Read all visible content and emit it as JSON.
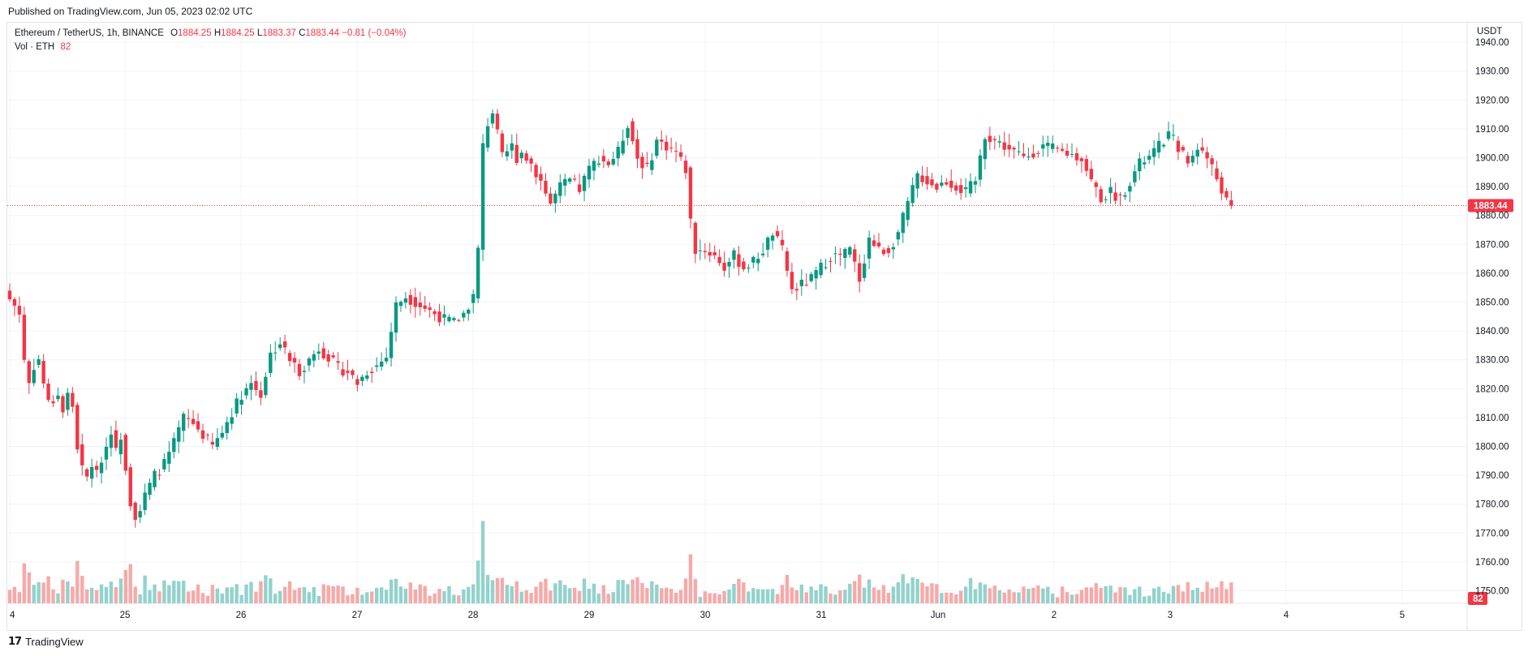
{
  "header": {
    "published": "Published on TradingView.com, Jun 05, 2023 02:02 UTC"
  },
  "legend": {
    "symbol": "Ethereum / TetherUS, 1h, BINANCE",
    "o_label": "O",
    "o_value": "1884.25",
    "h_label": "H",
    "h_value": "1884.25",
    "l_label": "L",
    "l_value": "1883.37",
    "c_label": "C",
    "c_value": "1883.44",
    "change": "−0.81 (−0.04%)",
    "vol_label": "Vol · ETH",
    "vol_value": "82"
  },
  "price_axis": {
    "quote": "USDT",
    "last_price_label": "1883.44",
    "last_volume_label": "82"
  },
  "footer": {
    "brand": "TradingView"
  },
  "colors": {
    "up": "#089981",
    "down": "#f23645",
    "up_vol": "#92d2cc",
    "down_vol": "#f7a9a7",
    "grid": "#f0f3fa"
  },
  "chart_data": {
    "type": "candlestick",
    "interval": "1h",
    "y_ticks": [
      1750,
      1760,
      1770,
      1780,
      1790,
      1800,
      1810,
      1820,
      1830,
      1840,
      1850,
      1860,
      1870,
      1880,
      1890,
      1900,
      1910,
      1920,
      1930,
      1940
    ],
    "ylim": [
      1742,
      1942
    ],
    "x_tick_labels": [
      "4",
      "25",
      "26",
      "27",
      "28",
      "29",
      "30",
      "31",
      "Jun",
      "2",
      "3",
      "4",
      "5"
    ],
    "last_price": 1883.44,
    "anchors": [
      [
        0,
        1851
      ],
      [
        1,
        1849
      ],
      [
        2,
        1846
      ],
      [
        3,
        1830
      ],
      [
        4,
        1822
      ],
      [
        5,
        1828
      ],
      [
        6,
        1830
      ],
      [
        7,
        1822
      ],
      [
        8,
        1815
      ],
      [
        9,
        1816
      ],
      [
        10,
        1818
      ],
      [
        11,
        1812
      ],
      [
        12,
        1818
      ],
      [
        13,
        1814
      ],
      [
        14,
        1800
      ],
      [
        15,
        1792
      ],
      [
        16,
        1789
      ],
      [
        17,
        1794
      ],
      [
        18,
        1790
      ],
      [
        19,
        1796
      ],
      [
        20,
        1800
      ],
      [
        21,
        1806
      ],
      [
        22,
        1798
      ],
      [
        23,
        1804
      ],
      [
        24,
        1793
      ],
      [
        25,
        1781
      ],
      [
        26,
        1776
      ],
      [
        27,
        1778
      ],
      [
        28,
        1783
      ],
      [
        30,
        1790
      ],
      [
        32,
        1794
      ],
      [
        34,
        1801
      ],
      [
        36,
        1810
      ],
      [
        38,
        1808
      ],
      [
        40,
        1804
      ],
      [
        42,
        1800
      ],
      [
        44,
        1805
      ],
      [
        46,
        1812
      ],
      [
        48,
        1818
      ],
      [
        50,
        1822
      ],
      [
        52,
        1818
      ],
      [
        54,
        1832
      ],
      [
        56,
        1836
      ],
      [
        58,
        1830
      ],
      [
        60,
        1826
      ],
      [
        62,
        1830
      ],
      [
        64,
        1834
      ],
      [
        66,
        1831
      ],
      [
        68,
        1827
      ],
      [
        70,
        1826
      ],
      [
        72,
        1822
      ],
      [
        74,
        1826
      ],
      [
        76,
        1828
      ],
      [
        78,
        1831
      ],
      [
        80,
        1849
      ],
      [
        82,
        1852
      ],
      [
        84,
        1850
      ],
      [
        86,
        1848
      ],
      [
        88,
        1846
      ],
      [
        90,
        1844
      ],
      [
        92,
        1843
      ],
      [
        94,
        1846
      ],
      [
        96,
        1852
      ],
      [
        97,
        1868
      ],
      [
        98,
        1904
      ],
      [
        99,
        1912
      ],
      [
        100,
        1916
      ],
      [
        101,
        1908
      ],
      [
        102,
        1900
      ],
      [
        103,
        1902
      ],
      [
        104,
        1904
      ],
      [
        105,
        1900
      ],
      [
        106,
        1902
      ],
      [
        108,
        1898
      ],
      [
        110,
        1892
      ],
      [
        112,
        1884
      ],
      [
        114,
        1890
      ],
      [
        116,
        1892
      ],
      [
        118,
        1889
      ],
      [
        120,
        1896
      ],
      [
        122,
        1900
      ],
      [
        124,
        1898
      ],
      [
        126,
        1902
      ],
      [
        128,
        1912
      ],
      [
        130,
        1900
      ],
      [
        132,
        1896
      ],
      [
        134,
        1906
      ],
      [
        136,
        1904
      ],
      [
        138,
        1902
      ],
      [
        140,
        1896
      ],
      [
        141,
        1878
      ],
      [
        142,
        1868
      ],
      [
        144,
        1868
      ],
      [
        146,
        1866
      ],
      [
        148,
        1862
      ],
      [
        150,
        1866
      ],
      [
        152,
        1862
      ],
      [
        154,
        1864
      ],
      [
        156,
        1868
      ],
      [
        158,
        1874
      ],
      [
        160,
        1868
      ],
      [
        162,
        1854
      ],
      [
        164,
        1856
      ],
      [
        166,
        1858
      ],
      [
        168,
        1862
      ],
      [
        170,
        1866
      ],
      [
        172,
        1866
      ],
      [
        174,
        1868
      ],
      [
        176,
        1858
      ],
      [
        178,
        1872
      ],
      [
        180,
        1868
      ],
      [
        182,
        1868
      ],
      [
        184,
        1874
      ],
      [
        186,
        1884
      ],
      [
        188,
        1894
      ],
      [
        190,
        1892
      ],
      [
        192,
        1890
      ],
      [
        194,
        1892
      ],
      [
        196,
        1890
      ],
      [
        198,
        1888
      ],
      [
        200,
        1892
      ],
      [
        202,
        1908
      ],
      [
        204,
        1906
      ],
      [
        206,
        1904
      ],
      [
        208,
        1902
      ],
      [
        210,
        1900
      ],
      [
        212,
        1902
      ],
      [
        214,
        1904
      ],
      [
        216,
        1903
      ],
      [
        218,
        1902
      ],
      [
        220,
        1901
      ],
      [
        222,
        1900
      ],
      [
        224,
        1892
      ],
      [
        226,
        1886
      ],
      [
        228,
        1888
      ],
      [
        230,
        1886
      ],
      [
        232,
        1892
      ],
      [
        234,
        1898
      ],
      [
        236,
        1900
      ],
      [
        238,
        1904
      ],
      [
        240,
        1908
      ],
      [
        242,
        1904
      ],
      [
        244,
        1898
      ],
      [
        246,
        1904
      ],
      [
        248,
        1900
      ],
      [
        250,
        1893
      ],
      [
        252,
        1885
      ],
      [
        253,
        1883.44
      ]
    ]
  }
}
